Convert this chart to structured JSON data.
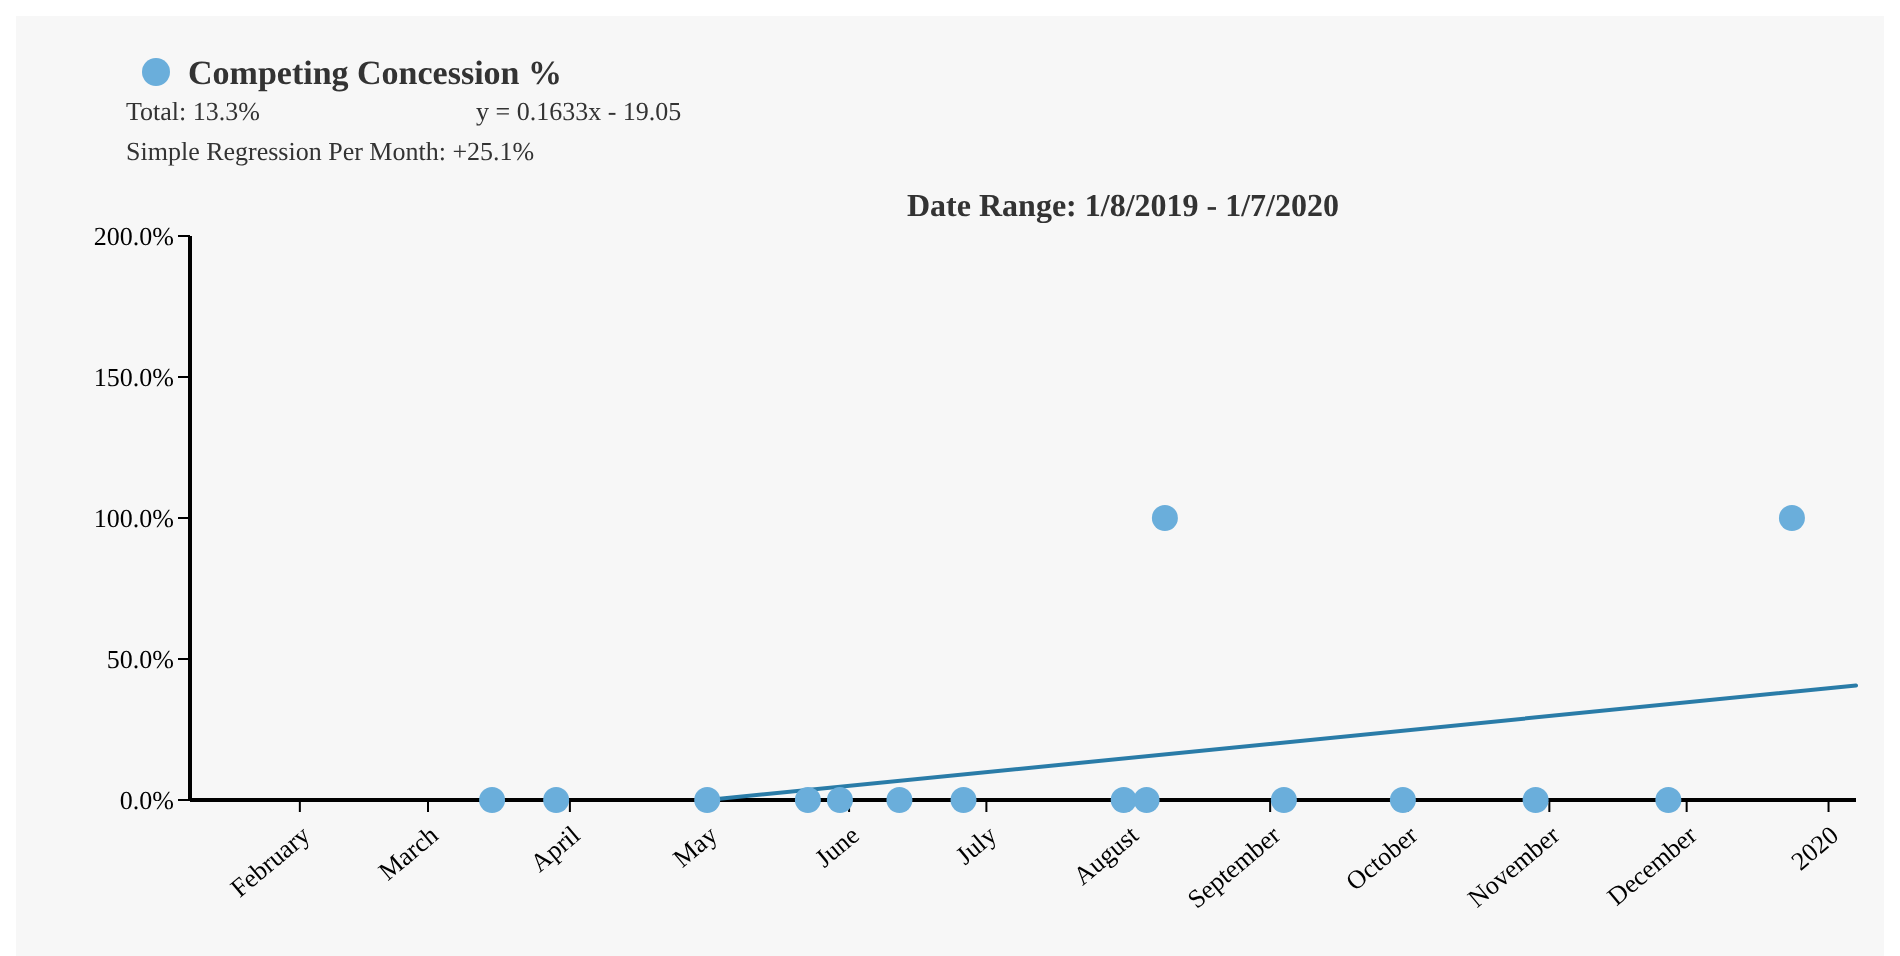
{
  "chart_data": {
    "type": "scatter",
    "title": "Date Range: 1/8/2019 - 1/7/2020",
    "annotations": [
      "Total: 13.3%",
      "y = 0.1633x - 19.05",
      "Simple Regression Per Month: +25.1%"
    ],
    "series": [
      {
        "name": "Competing Concession %",
        "marker": "circle",
        "color": "#6aaedb",
        "x": [
          "2019-03-15",
          "2019-03-29",
          "2019-05-01",
          "2019-05-23",
          "2019-05-30",
          "2019-06-12",
          "2019-06-26",
          "2019-07-31",
          "2019-08-05",
          "2019-08-09",
          "2019-09-04",
          "2019-09-30",
          "2019-10-29",
          "2019-11-27",
          "2019-12-24"
        ],
        "values": [
          0,
          0,
          0,
          0,
          0,
          0,
          0,
          0,
          0,
          100,
          0,
          0,
          0,
          0,
          100
        ]
      },
      {
        "type": "line",
        "color": "#2a7ca8",
        "x": [
          "2019-05-01",
          "2020-01-07"
        ],
        "values": [
          0,
          40.6
        ]
      }
    ],
    "xlim": [
      "2019-01-08",
      "2020-01-07"
    ],
    "xticks": [
      {
        "value": "2019-02-01",
        "label": "February"
      },
      {
        "value": "2019-03-01",
        "label": "March"
      },
      {
        "value": "2019-04-01",
        "label": "April"
      },
      {
        "value": "2019-05-01",
        "label": "May"
      },
      {
        "value": "2019-06-01",
        "label": "June"
      },
      {
        "value": "2019-07-01",
        "label": "July"
      },
      {
        "value": "2019-08-01",
        "label": "August"
      },
      {
        "value": "2019-09-01",
        "label": "September"
      },
      {
        "value": "2019-10-01",
        "label": "October"
      },
      {
        "value": "2019-11-01",
        "label": "November"
      },
      {
        "value": "2019-12-01",
        "label": "December"
      },
      {
        "value": "2020-01-01",
        "label": "2020"
      }
    ],
    "ylim": [
      0,
      200
    ],
    "yticks": [
      {
        "value": 0,
        "label": "0.0%"
      },
      {
        "value": 50,
        "label": "50.0%"
      },
      {
        "value": 100,
        "label": "100.0%"
      },
      {
        "value": 150,
        "label": "150.0%"
      },
      {
        "value": 200,
        "label": "200.0%"
      }
    ],
    "grid": false,
    "legend": "top left"
  }
}
